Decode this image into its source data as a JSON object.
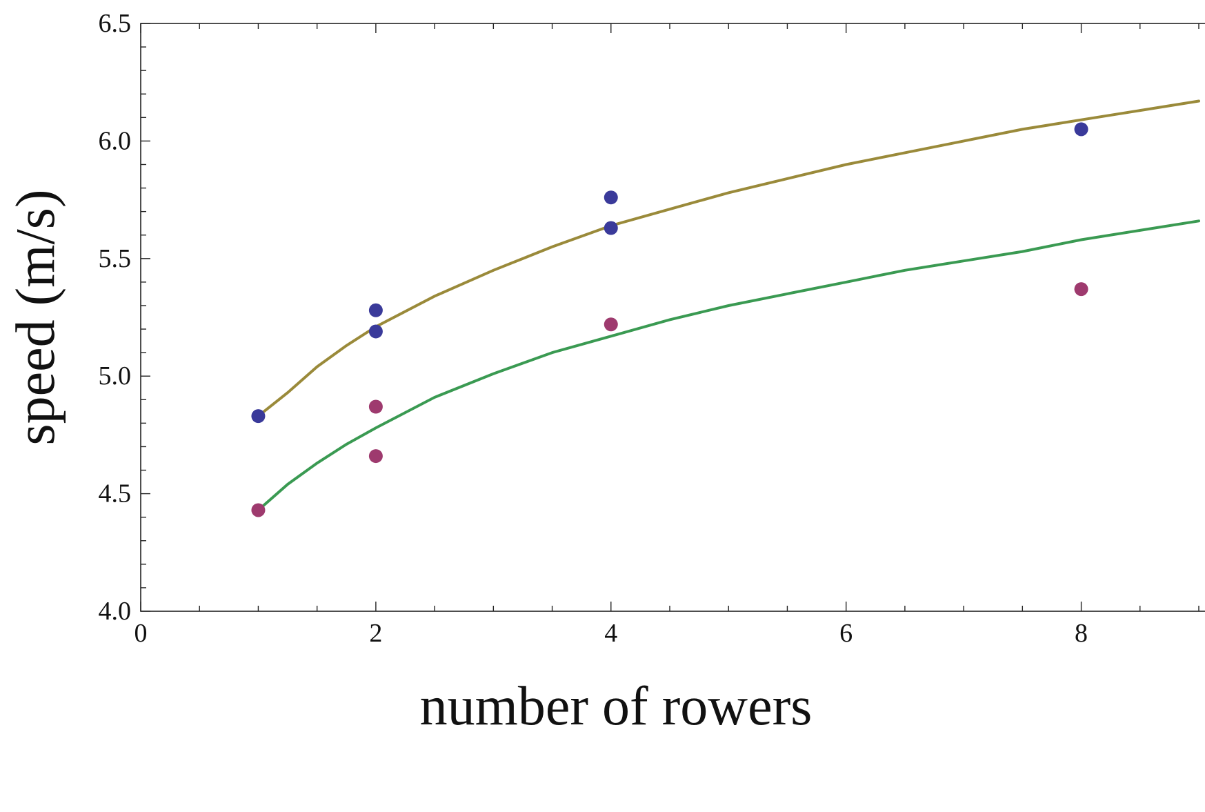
{
  "chart_data": {
    "type": "scatter",
    "xlabel": "number of rowers",
    "ylabel": "speed (m/s)",
    "xlim": [
      0,
      9
    ],
    "ylim": [
      4.0,
      6.5
    ],
    "x_ticks": [
      0,
      2,
      4,
      6,
      8
    ],
    "x_tick_labels": [
      "0",
      "2",
      "4",
      "6",
      "8"
    ],
    "y_ticks": [
      4.0,
      4.5,
      5.0,
      5.5,
      6.0,
      6.5
    ],
    "y_tick_labels": [
      "4.0",
      "4.5",
      "5.0",
      "5.5",
      "6.0",
      "6.5"
    ],
    "grid": false,
    "series": [
      {
        "kind": "points",
        "color": "#3a3a9a",
        "points": [
          [
            1,
            4.83
          ],
          [
            2,
            5.28
          ],
          [
            2,
            5.19
          ],
          [
            4,
            5.76
          ],
          [
            4,
            5.63
          ],
          [
            8,
            6.05
          ]
        ]
      },
      {
        "kind": "points",
        "color": "#9e3a6e",
        "points": [
          [
            1,
            4.43
          ],
          [
            2,
            4.87
          ],
          [
            2,
            4.66
          ],
          [
            4,
            5.22
          ],
          [
            8,
            5.37
          ]
        ]
      },
      {
        "kind": "curve",
        "color": "#9a8a3a",
        "x": [
          1,
          1.25,
          1.5,
          1.75,
          2,
          2.5,
          3,
          3.5,
          4,
          4.5,
          5,
          5.5,
          6,
          6.5,
          7,
          7.5,
          8,
          8.5,
          9
        ],
        "y": [
          4.83,
          4.93,
          5.04,
          5.13,
          5.21,
          5.34,
          5.45,
          5.55,
          5.64,
          5.71,
          5.78,
          5.84,
          5.9,
          5.95,
          6.0,
          6.05,
          6.09,
          6.13,
          6.17
        ]
      },
      {
        "kind": "curve",
        "color": "#3a9a52",
        "x": [
          1,
          1.25,
          1.5,
          1.75,
          2,
          2.5,
          3,
          3.5,
          4,
          4.5,
          5,
          5.5,
          6,
          6.5,
          7,
          7.5,
          8,
          8.5,
          9
        ],
        "y": [
          4.43,
          4.54,
          4.63,
          4.71,
          4.78,
          4.91,
          5.01,
          5.1,
          5.17,
          5.24,
          5.3,
          5.35,
          5.4,
          5.45,
          5.49,
          5.53,
          5.58,
          5.62,
          5.66
        ]
      }
    ]
  }
}
